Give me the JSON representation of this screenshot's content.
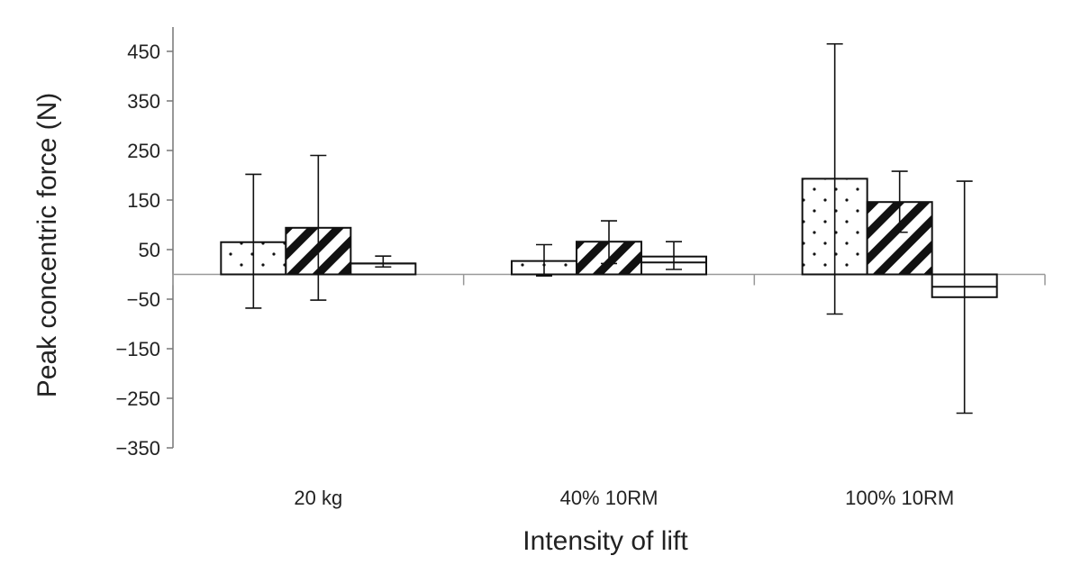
{
  "chart_data": {
    "type": "bar",
    "title": "",
    "xlabel": "Intensity of lift",
    "ylabel": "Peak concentric force (N)",
    "categories": [
      "20 kg",
      "40% 10RM",
      "100% 10RM"
    ],
    "ylim": [
      -350,
      450
    ],
    "yticks": [
      450,
      350,
      250,
      150,
      50,
      -50,
      -150,
      -250,
      -350
    ],
    "ytick_labels": [
      "450",
      "350",
      "250",
      "150",
      "50",
      "−50",
      "−150",
      "−250",
      "−350"
    ],
    "grid": false,
    "legend": "none",
    "series": [
      {
        "pattern": "dots",
        "values": [
          65,
          27,
          193
        ],
        "err_low": [
          -68,
          -3,
          -80
        ],
        "err_high": [
          202,
          60,
          465
        ]
      },
      {
        "pattern": "diagonal-stripes",
        "values": [
          94,
          66,
          146
        ],
        "err_low": [
          -52,
          22,
          85
        ],
        "err_high": [
          240,
          108,
          208
        ]
      },
      {
        "pattern": "horizontal-line",
        "values": [
          22,
          36,
          -46
        ],
        "err_low": [
          15,
          10,
          -280
        ],
        "err_high": [
          37,
          66,
          188
        ],
        "median": [
          22,
          24,
          -25
        ]
      }
    ]
  }
}
